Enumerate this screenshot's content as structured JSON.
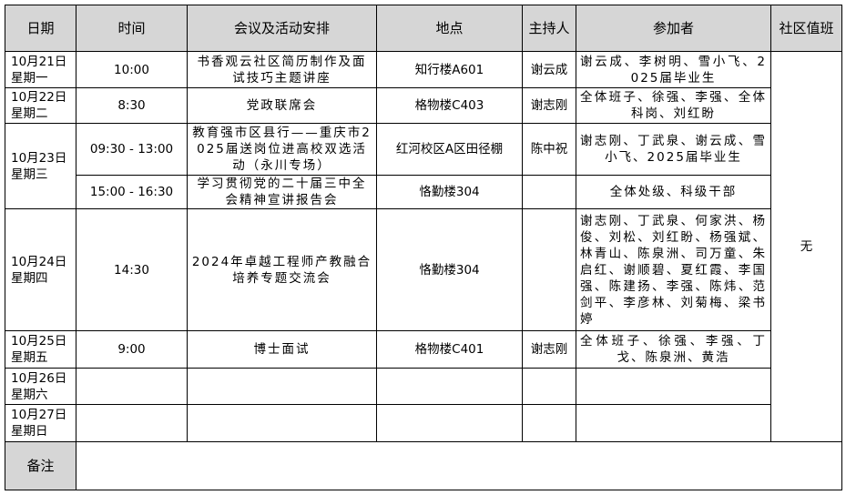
{
  "headers": [
    "日期",
    "时间",
    "会议及活动安排",
    "地点",
    "主持人",
    "参加者",
    "社区值班"
  ],
  "rows": [
    {
      "date": "10月21日",
      "weekday": "星期一",
      "time": "10:00",
      "event": "书香观云社区简历制作及面试技巧主题讲座",
      "location": "知行楼A601",
      "host": "谢云成",
      "attendees": "谢云成、李树明、雪小飞、2025届毕业生"
    },
    {
      "date": "10月22日",
      "weekday": "星期二",
      "time": "8:30",
      "event": "党政联席会",
      "location": "格物楼C403",
      "host": "谢志刚",
      "attendees": "全体班子、徐强、李强、全体科岗、刘红盼"
    },
    {
      "date": "10月23日",
      "weekday": "星期三",
      "time": "09:30 - 13:00",
      "event": "教育强市区县行——重庆市2025届送岗位进高校双选活动（永川专场）",
      "location": "红河校区A区田径棚",
      "host": "陈中祝",
      "attendees": "谢志刚、丁武泉、谢云成、雪小飞、2025届毕业生"
    },
    {
      "time": "15:00 - 16:30",
      "event": "学习贯彻党的二十届三中全会精神宣讲报告会",
      "location": "恪勤楼304",
      "host": "",
      "attendees": "全体处级、科级干部"
    },
    {
      "date": "10月24日",
      "weekday": "星期四",
      "time": "14:30",
      "event": "2024年卓越工程师产教融合培养专题交流会",
      "location": "恪勤楼304",
      "host": "",
      "attendees": "谢志刚、丁武泉、何家洪、杨俊、刘松、刘红盼、杨强斌、林青山、陈泉洲、司万童、朱启红、谢顺碧、夏红霞、李国强、陈建扬、李强、陈炜、范剑平、李彦林、刘菊梅、梁书婷"
    },
    {
      "date": "10月25日",
      "weekday": "星期五",
      "time": "9:00",
      "event": "博士面试",
      "location": "格物楼C401",
      "host": "谢志刚",
      "attendees": "全体班子、徐强、李强、丁戈、陈泉洲、黄浩"
    },
    {
      "date": "10月26日",
      "weekday": "星期六"
    },
    {
      "date": "10月27日",
      "weekday": "星期日"
    }
  ],
  "duty": "无",
  "remark_label": "备注",
  "remark": ""
}
